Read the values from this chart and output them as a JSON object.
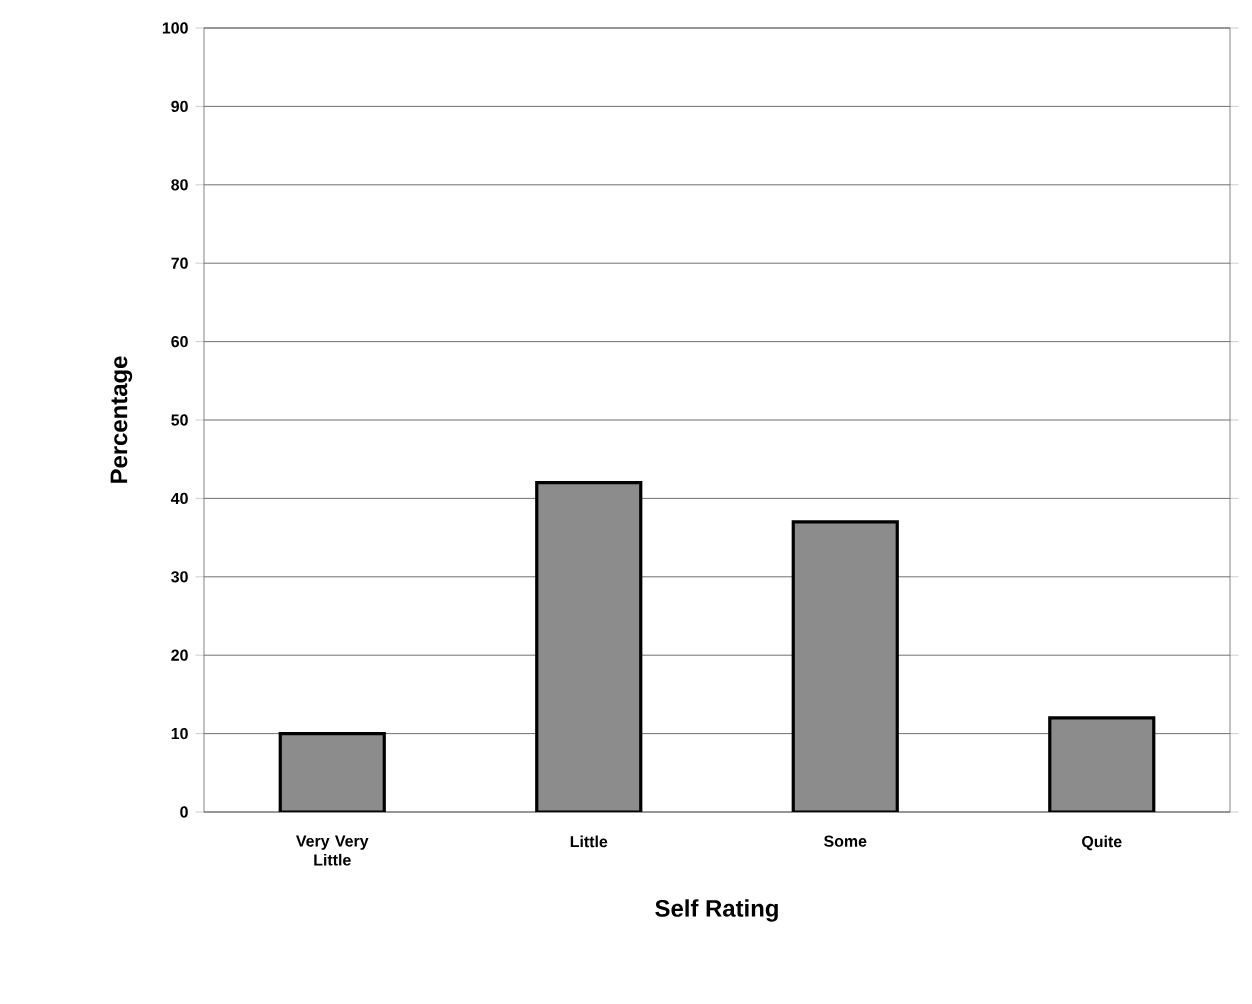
{
  "chart_data": {
    "type": "bar",
    "xlabel": "Self Rating",
    "ylabel": "Percentage",
    "categories": [
      "Very Very Little",
      "Little",
      "Some",
      "Quite"
    ],
    "values": [
      10,
      42,
      37,
      12
    ],
    "color": "#8c8c8c",
    "ylim": [
      0,
      100
    ],
    "yticks": [
      0,
      10,
      20,
      30,
      40,
      50,
      60,
      70,
      80,
      90,
      100
    ],
    "grid": "y"
  }
}
